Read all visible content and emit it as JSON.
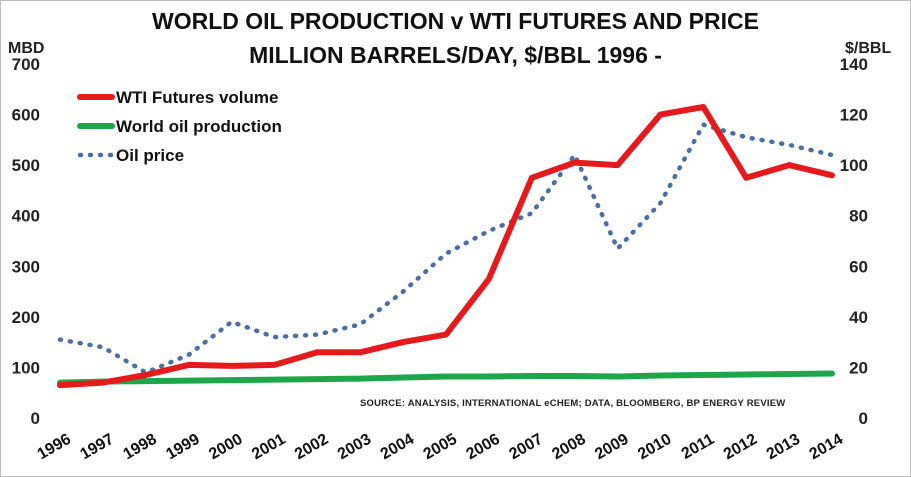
{
  "title_line1": "WORLD OIL PRODUCTION v WTI FUTURES AND PRICE",
  "title_line2": "MILLION BARRELS/DAY, $/BBL 1996 -",
  "left_unit": "MBD",
  "right_unit": "$/BBL",
  "source": "SOURCE: ANALYSIS, INTERNATIONAL eCHEM; DATA, BLOOMBERG, BP ENERGY REVIEW",
  "colors": {
    "futures": "#e41a1c",
    "production": "#1fa64a",
    "price": "#4a6fa5"
  },
  "chart_data": {
    "type": "line",
    "title": "WORLD OIL PRODUCTION v WTI FUTURES AND PRICE MILLION BARRELS/DAY, $/BBL 1996 -",
    "x": [
      "1996",
      "1997",
      "1998",
      "1999",
      "2000",
      "2001",
      "2002",
      "2003",
      "2004",
      "2005",
      "2006",
      "2007",
      "2008",
      "2009",
      "2010",
      "2011",
      "2012",
      "2013",
      "2014"
    ],
    "y_left": {
      "label": "MBD",
      "ylim": [
        0,
        700
      ],
      "ticks": [
        0,
        100,
        200,
        300,
        400,
        500,
        600,
        700
      ]
    },
    "y_right": {
      "label": "$/BBL",
      "ylim": [
        0,
        140
      ],
      "ticks": [
        0,
        20,
        40,
        60,
        80,
        100,
        120,
        140
      ]
    },
    "legend_position": "top-left",
    "grid": false,
    "series": [
      {
        "name": "WTI Futures volume",
        "axis": "left",
        "style": "solid",
        "values": [
          65,
          70,
          85,
          105,
          103,
          105,
          130,
          130,
          150,
          165,
          275,
          475,
          505,
          500,
          600,
          615,
          475,
          500,
          480
        ]
      },
      {
        "name": "World oil production",
        "axis": "left",
        "style": "solid",
        "values": [
          70,
          72,
          73,
          74,
          75,
          76,
          77,
          78,
          80,
          82,
          82,
          83,
          83,
          82,
          84,
          85,
          86,
          87,
          88
        ]
      },
      {
        "name": "Oil price",
        "axis": "right",
        "style": "dotted",
        "values": [
          31,
          28,
          18,
          25,
          38,
          32,
          33,
          37,
          50,
          65,
          74,
          81,
          104,
          67,
          85,
          116,
          111,
          108,
          104
        ]
      }
    ]
  }
}
